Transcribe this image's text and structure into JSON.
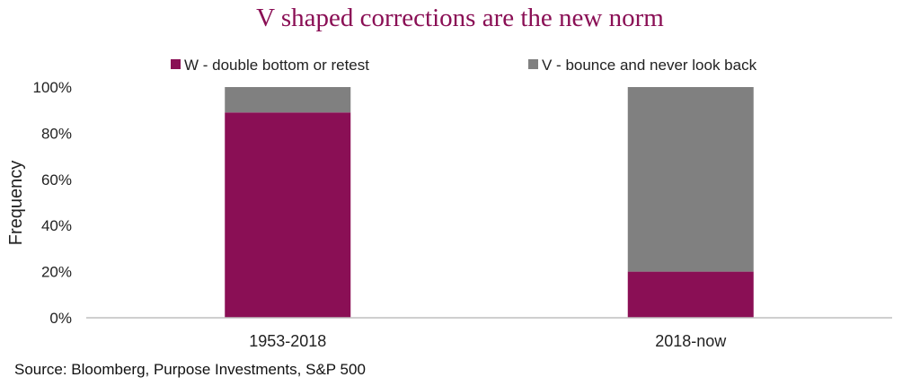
{
  "title": "V shaped corrections are the new norm",
  "source": "Source: Bloomberg, Purpose Investments, S&P 500",
  "colors": {
    "title": "#8a0f55",
    "series_w": "#8a0f55",
    "series_v": "#808080"
  },
  "chart_data": {
    "type": "bar",
    "stacked": true,
    "title": "V shaped corrections are the new norm",
    "xlabel": "",
    "ylabel": "Frequency",
    "categories": [
      "1953-2018",
      "2018-now"
    ],
    "series": [
      {
        "name": "W - double bottom or retest",
        "values": [
          89,
          20
        ],
        "color": "#8a0f55"
      },
      {
        "name": "V - bounce and never look back",
        "values": [
          11,
          80
        ],
        "color": "#808080"
      }
    ],
    "ylim": [
      0,
      100
    ],
    "yticks": [
      "0%",
      "20%",
      "40%",
      "60%",
      "80%",
      "100%"
    ],
    "grid": false,
    "legend": "top"
  }
}
